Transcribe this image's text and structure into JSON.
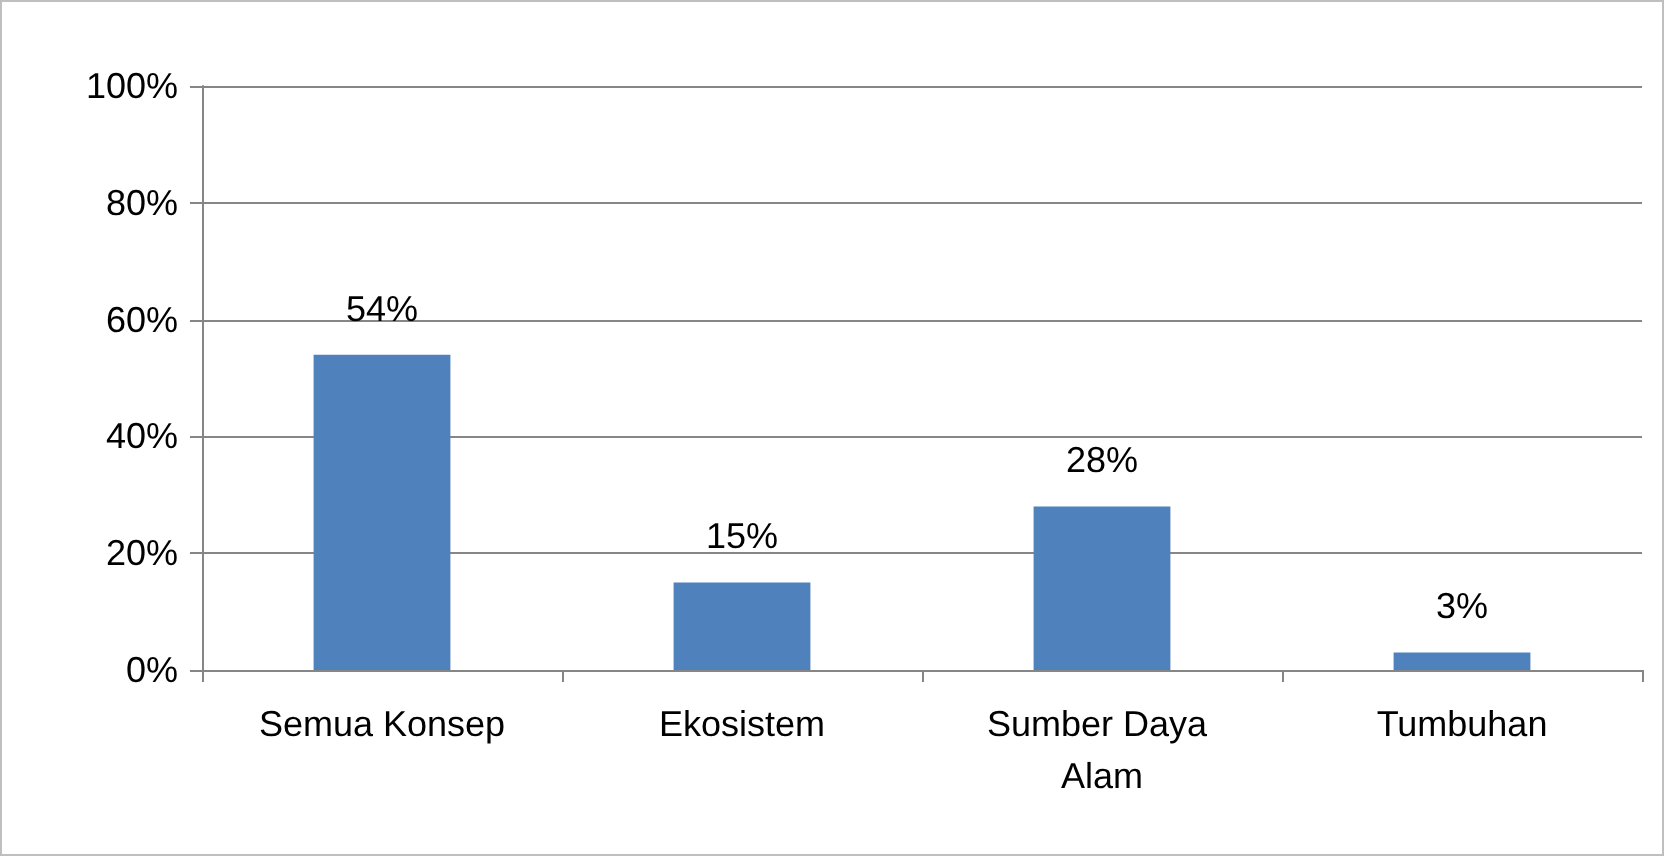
{
  "chart_data": {
    "type": "bar",
    "categories": [
      "Semua Konsep",
      "Ekosistem",
      "Sumber Daya Alam",
      "Tumbuhan"
    ],
    "values": [
      54,
      15,
      28,
      3
    ],
    "value_labels": [
      "54%",
      "15%",
      "28%",
      "3%"
    ],
    "color": "#4f81bd",
    "ylim": [
      0,
      100
    ],
    "yticks": [
      {
        "value": 0,
        "label": "0%"
      },
      {
        "value": 20,
        "label": "20%"
      },
      {
        "value": 40,
        "label": "40%"
      },
      {
        "value": 60,
        "label": "60%"
      },
      {
        "value": 80,
        "label": "80%"
      },
      {
        "value": 100,
        "label": "100%"
      }
    ],
    "grid": "y"
  }
}
